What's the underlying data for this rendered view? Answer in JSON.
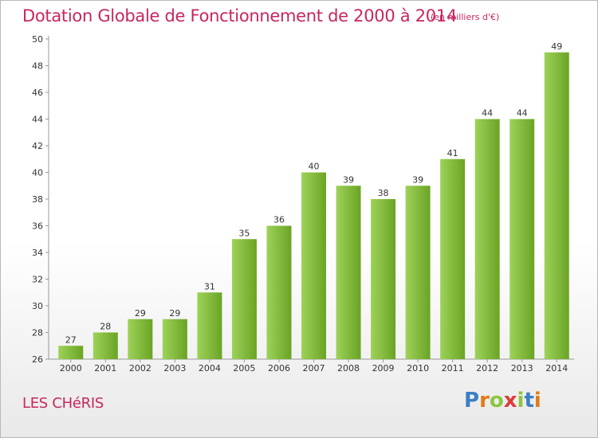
{
  "header": {
    "title": "Dotation Globale de Fonctionnement de 2000 à 2014",
    "unit": "(en milliers d'€)"
  },
  "footer": {
    "commune": "LES CHéRIS",
    "logo": {
      "letters": [
        "P",
        "r",
        "o",
        "x",
        "i",
        "t",
        "i"
      ],
      "colors": [
        "#3a7fc4",
        "#e07b1a",
        "#8cc63f",
        "#e03a3a",
        "#8cc63f",
        "#3a7fc4",
        "#e07b1a"
      ]
    }
  },
  "colors": {
    "bar_light": "#9ed25a",
    "bar_dark": "#6aa424",
    "text": "#333333",
    "title": "#c8265f"
  },
  "chart_data": {
    "type": "bar",
    "categories": [
      "2000",
      "2001",
      "2002",
      "2003",
      "2004",
      "2005",
      "2006",
      "2007",
      "2008",
      "2009",
      "2010",
      "2011",
      "2012",
      "2013",
      "2014"
    ],
    "values": [
      27,
      28,
      29,
      29,
      31,
      35,
      36,
      40,
      39,
      38,
      39,
      41,
      44,
      44,
      49
    ],
    "ylim": [
      26,
      50
    ],
    "yticks": [
      26,
      28,
      30,
      32,
      34,
      36,
      38,
      40,
      42,
      44,
      46,
      48,
      50
    ],
    "grid": false,
    "legend": "none"
  }
}
